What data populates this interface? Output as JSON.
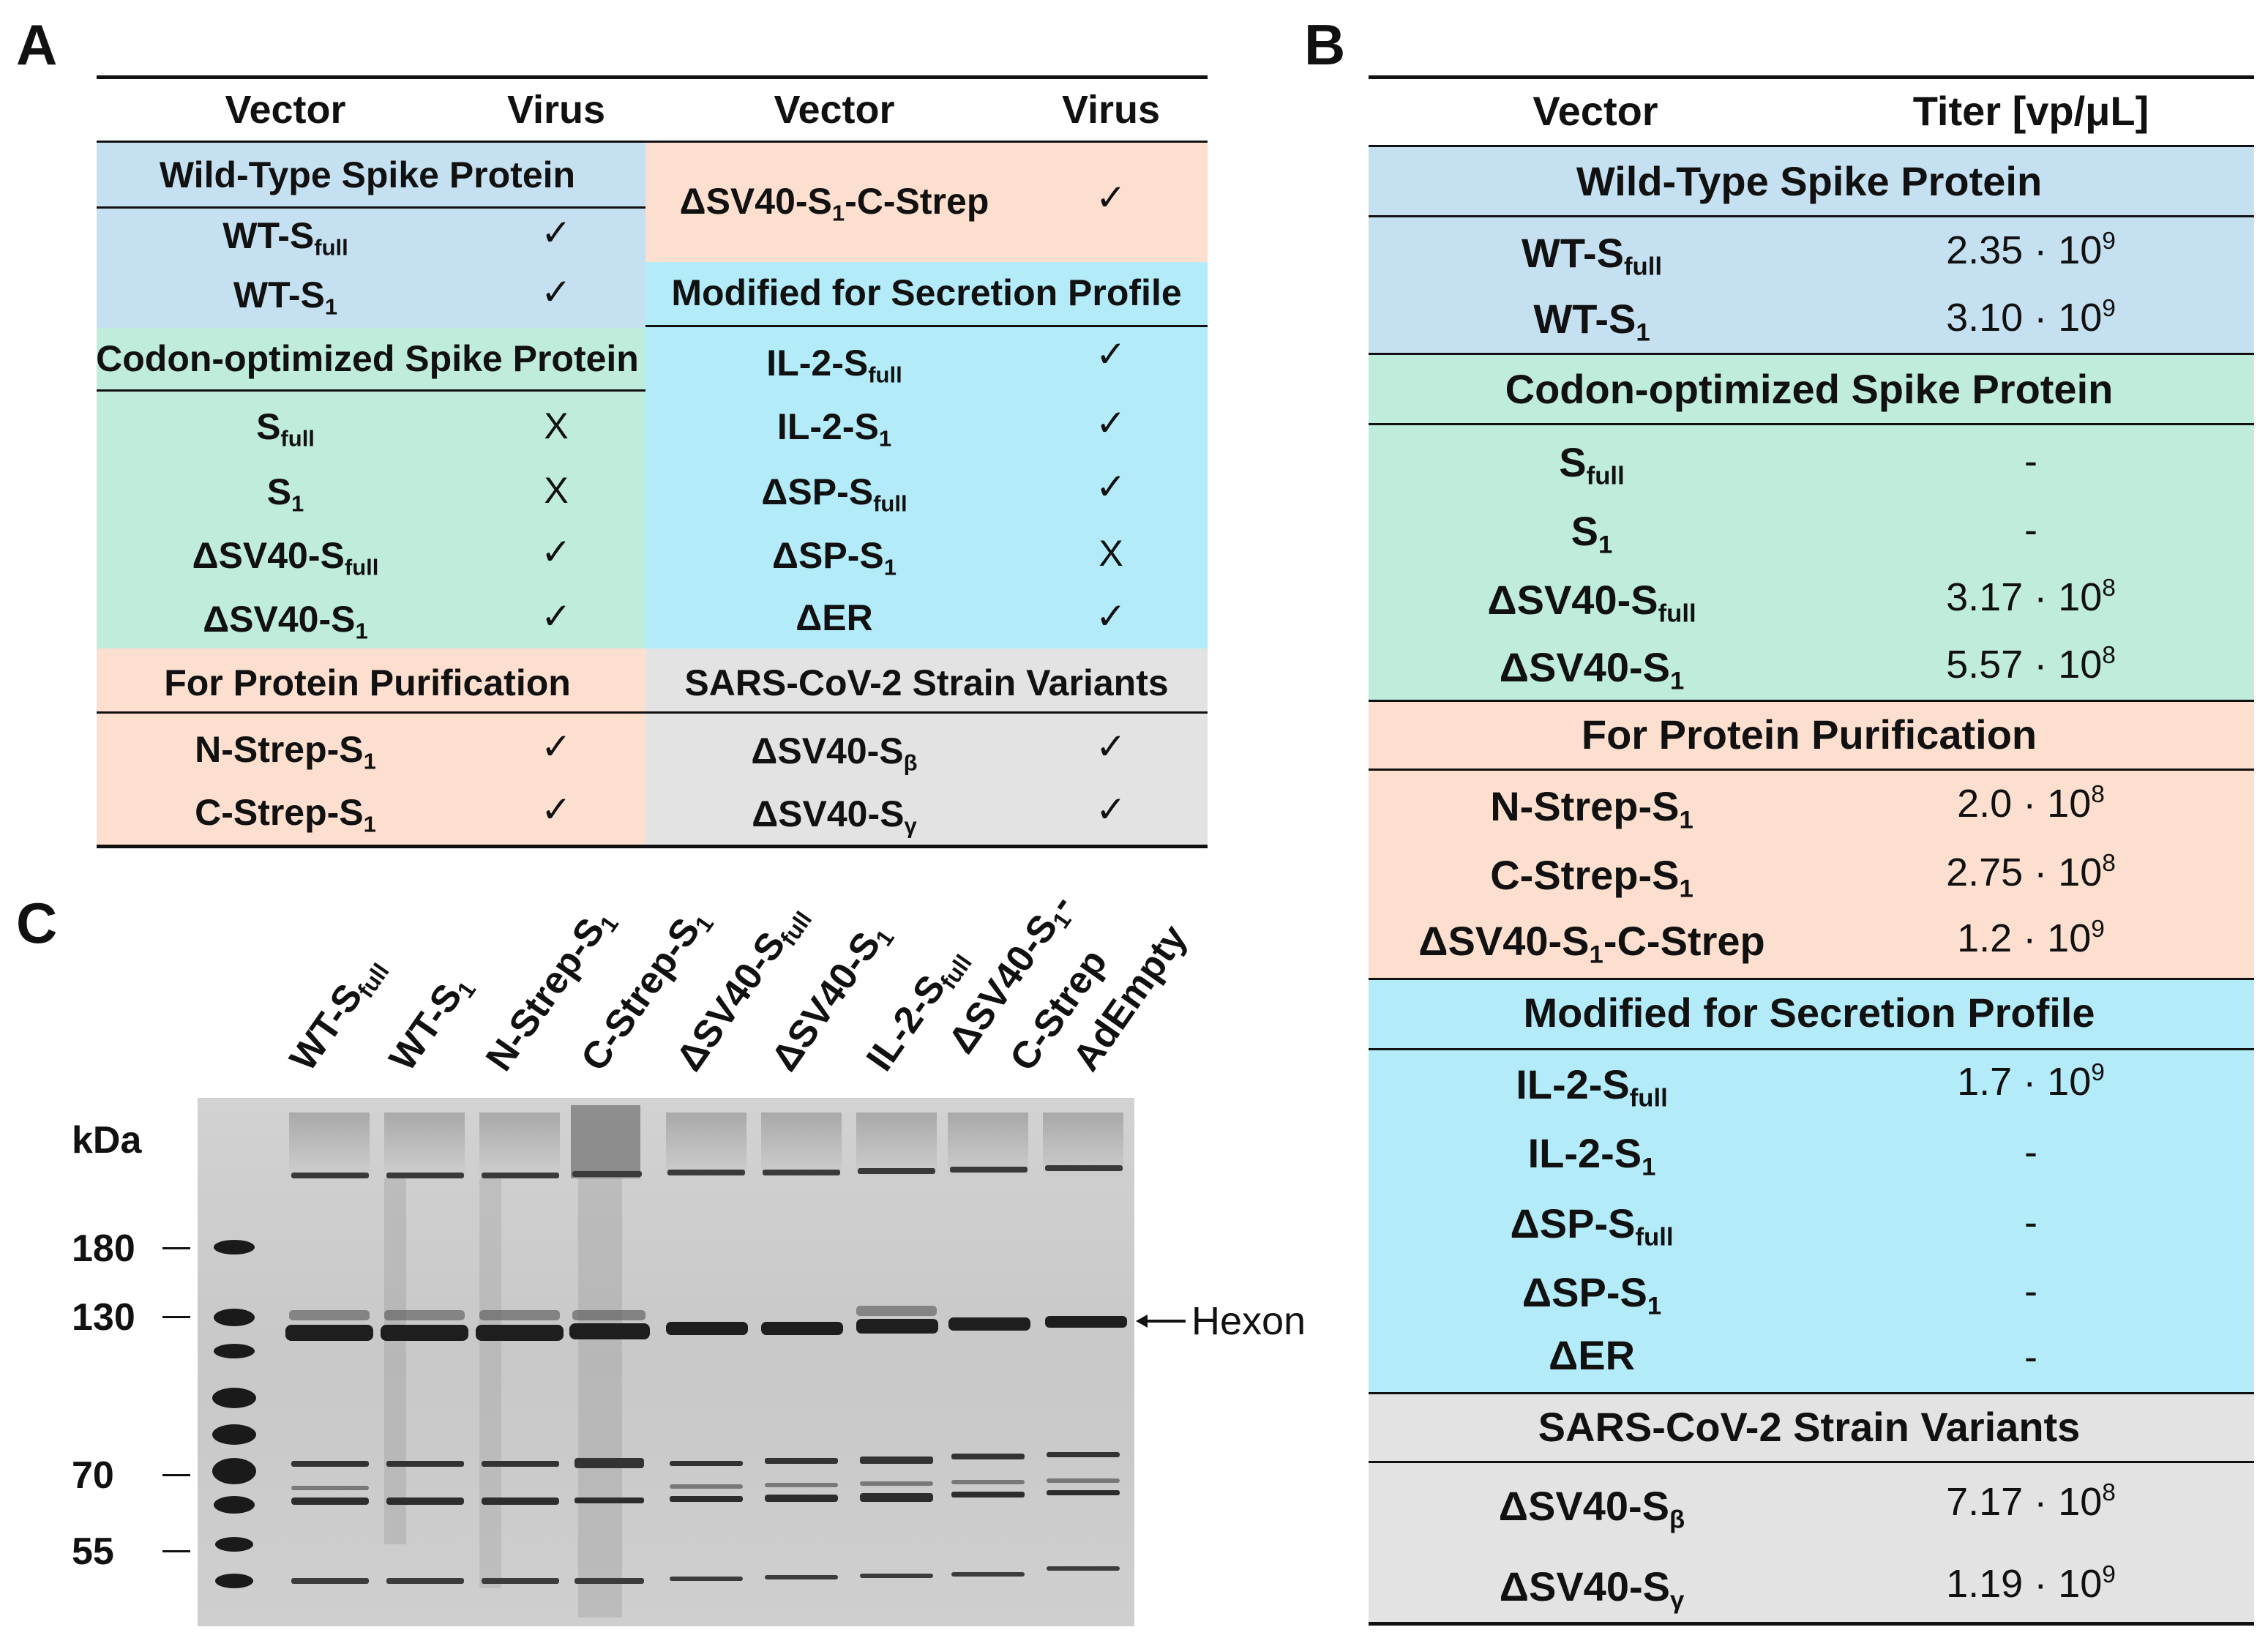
{
  "panel_labels": {
    "a": "A",
    "b": "B",
    "c": "C"
  },
  "colors": {
    "wild_type": "#c5e1f1",
    "codon_optimized": "#c0ecdb",
    "purification": "#fcdfcf",
    "secretion": "#b3ebf8",
    "variants": "#e3e3e3"
  },
  "table_a": {
    "headers": {
      "vector_left": "Vector",
      "virus_left": "Virus",
      "vector_right": "Vector",
      "virus_right": "Virus"
    },
    "left": {
      "wild_type": {
        "title": "Wild-Type Spike Protein",
        "rows": [
          {
            "vector": "WT-S",
            "sub": "full",
            "virus": "✓"
          },
          {
            "vector": "WT-S",
            "sub": "1",
            "virus": "✓"
          }
        ]
      },
      "codon": {
        "title": "Codon-optimized Spike Protein",
        "rows": [
          {
            "vector": "S",
            "sub": "full",
            "virus": "X"
          },
          {
            "vector": "S",
            "sub": "1",
            "virus": "X"
          },
          {
            "vector": "ΔSV40-S",
            "sub": "full",
            "virus": "✓"
          },
          {
            "vector": "ΔSV40-S",
            "sub": "1",
            "virus": "✓"
          }
        ]
      },
      "purification": {
        "title": "For Protein Purification",
        "rows": [
          {
            "vector": "N-Strep-S",
            "sub": "1",
            "virus": "✓"
          },
          {
            "vector": "C-Strep-S",
            "sub": "1",
            "virus": "✓"
          }
        ]
      }
    },
    "right": {
      "purification_cont": {
        "vector": "ΔSV40-S",
        "sub": "1",
        "suffix": "-C-Strep",
        "virus": "✓"
      },
      "secretion": {
        "title": "Modified for Secretion Profile",
        "rows": [
          {
            "vector": "IL-2-S",
            "sub": "full",
            "virus": "✓"
          },
          {
            "vector": "IL-2-S",
            "sub": "1",
            "virus": "✓"
          },
          {
            "vector": "ΔSP-S",
            "sub": "full",
            "virus": "✓"
          },
          {
            "vector": "ΔSP-S",
            "sub": "1",
            "virus": "X"
          },
          {
            "vector": "ΔER",
            "sub": "",
            "virus": "✓"
          }
        ]
      },
      "variants": {
        "title": "SARS-CoV-2 Strain Variants",
        "rows": [
          {
            "vector": "ΔSV40-S",
            "sub": "β",
            "virus": "✓"
          },
          {
            "vector": "ΔSV40-S",
            "sub": "γ",
            "virus": "✓"
          }
        ]
      }
    }
  },
  "table_b": {
    "headers": {
      "vector": "Vector",
      "titer": "Titer [vp/μL]"
    },
    "groups": [
      {
        "title": "Wild-Type Spike Protein",
        "rows": [
          {
            "vector": "WT-S",
            "sub": "full",
            "suffix": "",
            "mant": "2.35 · 10",
            "exp": "9"
          },
          {
            "vector": "WT-S",
            "sub": "1",
            "suffix": "",
            "mant": "3.10 · 10",
            "exp": "9"
          }
        ]
      },
      {
        "title": "Codon-optimized Spike Protein",
        "rows": [
          {
            "vector": "S",
            "sub": "full",
            "suffix": "",
            "mant": "-",
            "exp": ""
          },
          {
            "vector": "S",
            "sub": "1",
            "suffix": "",
            "mant": "-",
            "exp": ""
          },
          {
            "vector": "ΔSV40-S",
            "sub": "full",
            "suffix": "",
            "mant": "3.17 · 10",
            "exp": "8"
          },
          {
            "vector": "ΔSV40-S",
            "sub": "1",
            "suffix": "",
            "mant": "5.57 · 10",
            "exp": "8"
          }
        ]
      },
      {
        "title": "For Protein Purification",
        "rows": [
          {
            "vector": "N-Strep-S",
            "sub": "1",
            "suffix": "",
            "mant": "2.0 · 10",
            "exp": "8"
          },
          {
            "vector": "C-Strep-S",
            "sub": "1",
            "suffix": "",
            "mant": "2.75 · 10",
            "exp": "8"
          },
          {
            "vector": "ΔSV40-S",
            "sub": "1",
            "suffix": "-C-Strep",
            "mant": "1.2 · 10",
            "exp": "9"
          }
        ]
      },
      {
        "title": "Modified for Secretion Profile",
        "rows": [
          {
            "vector": "IL-2-S",
            "sub": "full",
            "suffix": "",
            "mant": "1.7 · 10",
            "exp": "9"
          },
          {
            "vector": "IL-2-S",
            "sub": "1",
            "suffix": "",
            "mant": "-",
            "exp": ""
          },
          {
            "vector": "ΔSP-S",
            "sub": "full",
            "suffix": "",
            "mant": "-",
            "exp": ""
          },
          {
            "vector": "ΔSP-S",
            "sub": "1",
            "suffix": "",
            "mant": "-",
            "exp": ""
          },
          {
            "vector": "ΔER",
            "sub": "",
            "suffix": "",
            "mant": "-",
            "exp": ""
          }
        ]
      },
      {
        "title": "SARS-CoV-2 Strain Variants",
        "rows": [
          {
            "vector": "ΔSV40-S",
            "sub": "β",
            "suffix": "",
            "mant": "7.17 · 10",
            "exp": "8"
          },
          {
            "vector": "ΔSV40-S",
            "sub": "γ",
            "suffix": "",
            "mant": "1.19 · 10",
            "exp": "9"
          }
        ]
      }
    ]
  },
  "gel": {
    "lanes": [
      {
        "main": "WT-S",
        "sub": "full",
        "rest": "",
        "line2": ""
      },
      {
        "main": "WT-S",
        "sub": "1",
        "rest": "",
        "line2": ""
      },
      {
        "main": "N-Strep-S",
        "sub": "1",
        "rest": "",
        "line2": ""
      },
      {
        "main": "C-Strep-S",
        "sub": "1",
        "rest": "",
        "line2": ""
      },
      {
        "main": "ΔSV40-S",
        "sub": "full",
        "rest": "",
        "line2": ""
      },
      {
        "main": "ΔSV40-S",
        "sub": "1",
        "rest": "",
        "line2": ""
      },
      {
        "main": "IL-2-S",
        "sub": "full",
        "rest": "",
        "line2": ""
      },
      {
        "main": "ΔSV40-S",
        "sub": "1",
        "rest": "-",
        "line2": "C-Strep"
      },
      {
        "main": "AdEmpty",
        "sub": "",
        "rest": "",
        "line2": ""
      }
    ],
    "unit": "kDa",
    "markers": [
      "180",
      "130",
      "70",
      "55"
    ],
    "hexon_label": "Hexon"
  }
}
